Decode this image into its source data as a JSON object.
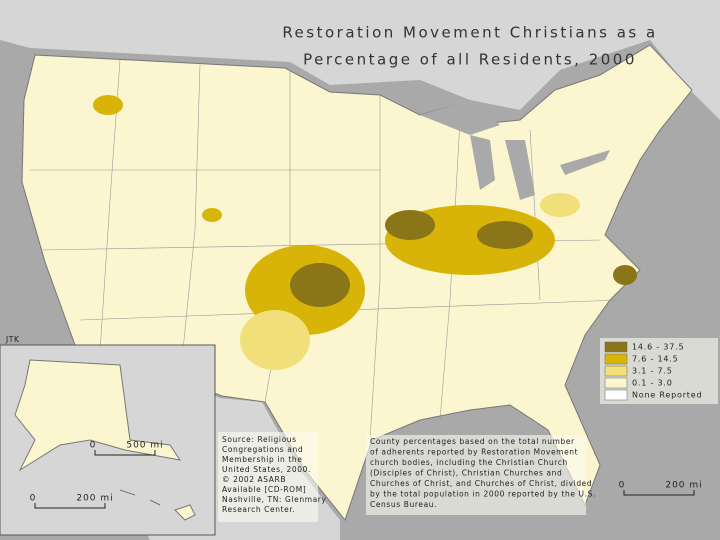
{
  "title": [
    "Restoration Movement Christians as a",
    "Percentage of all Residents, 2000"
  ],
  "legend": [
    {
      "label": "14.6 - 37.5",
      "color": "#8a7518"
    },
    {
      "label": "7.6 - 14.5",
      "color": "#d9b408"
    },
    {
      "label": "3.1 - 7.5",
      "color": "#f1df7a"
    },
    {
      "label": "0.1 - 3.0",
      "color": "#fbf6cf"
    },
    {
      "label": "None Reported",
      "color": "#ffffff"
    }
  ],
  "source": [
    "Source: Religious",
    "Congregations and",
    "Membership in the",
    "United States, 2000.",
    "© 2002 ASARB",
    "Available [CD-ROM]",
    "Nashville, TN: Glenmary",
    "Research Center."
  ],
  "note": [
    "County percentages based on the total number",
    "of adherents reported by Restoration Movement",
    "church bodies, including the Christian Church",
    "(Disciples of Christ), Christian Churches and",
    "Churches of Christ, and Churches of Christ, divided",
    "by the total population in 2000 reported by the U.S.",
    "Census Bureau."
  ],
  "scales": {
    "alaska": [
      "0",
      "500 mi"
    ],
    "hawaii": [
      "0",
      "200 mi"
    ],
    "main": [
      "0",
      "200 mi"
    ]
  },
  "credit": "JTK"
}
